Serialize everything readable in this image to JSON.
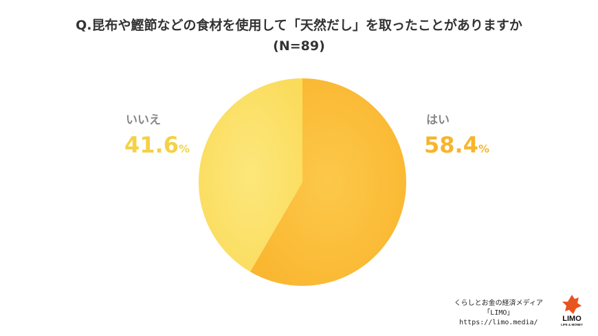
{
  "header": {
    "title": "Q.昆布や鰹節などの食材を使用して「天然だし」を取ったことがありますか",
    "subtitle": "(N=89)"
  },
  "chart_data": {
    "type": "pie",
    "title": "Q.昆布や鰹節などの食材を使用して「天然だし」を取ったことがありますか",
    "subtitle": "(N=89)",
    "unit": "%",
    "slices": [
      {
        "label": "はい",
        "value": 58.4,
        "display": "58.4",
        "color": "#FBC13D"
      },
      {
        "label": "いいえ",
        "value": 41.6,
        "display": "41.6",
        "color": "#FCE36E"
      }
    ]
  },
  "colors": {
    "yes_label": "#F6B52D",
    "no_label": "#F4D146",
    "title": "#333333"
  },
  "footer": {
    "line1": "くらしとお金の経済メディア",
    "line2": "「LIMO」",
    "url": "https://limo.media/",
    "logo_text": "LIMO",
    "logo_sub": "LIFE & MONEY"
  }
}
